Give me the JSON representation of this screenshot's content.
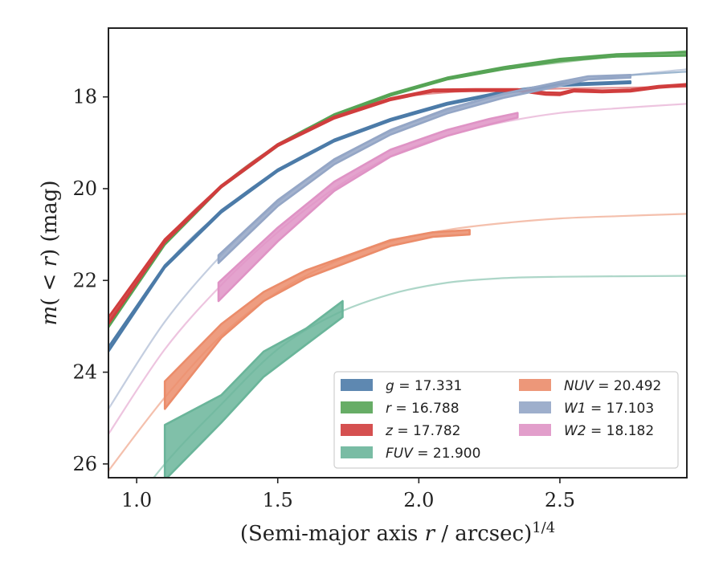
{
  "chart_data": {
    "type": "line",
    "xlabel": "(Semi-major axis r / arcsec)^1/4",
    "ylabel": "m( < r) (mag)",
    "xlim": [
      0.9,
      2.95
    ],
    "ylim": [
      26.3,
      16.5
    ],
    "y_inverted": true,
    "grid": false,
    "legend_position": "lower-right",
    "xticks": [
      {
        "v": 1.0,
        "label": "1.0"
      },
      {
        "v": 1.5,
        "label": "1.5"
      },
      {
        "v": 2.0,
        "label": "2.0"
      },
      {
        "v": 2.5,
        "label": "2.5"
      }
    ],
    "yticks": [
      {
        "v": 18,
        "label": "18"
      },
      {
        "v": 20,
        "label": "20"
      },
      {
        "v": 22,
        "label": "22"
      },
      {
        "v": 24,
        "label": "24"
      },
      {
        "v": 26,
        "label": "26"
      }
    ],
    "series": [
      {
        "name": "g = 17.331",
        "name_var": "g",
        "name_val": "17.331",
        "color": "#4c7ba8",
        "legend_col": 0,
        "legend_row": 0,
        "model": [
          [
            0.9,
            23.5
          ],
          [
            1.1,
            21.7
          ],
          [
            1.3,
            20.5
          ],
          [
            1.5,
            19.6
          ],
          [
            1.7,
            18.95
          ],
          [
            1.9,
            18.5
          ],
          [
            2.1,
            18.15
          ],
          [
            2.3,
            17.9
          ],
          [
            2.5,
            17.7
          ],
          [
            2.7,
            17.55
          ],
          [
            2.95,
            17.45
          ]
        ],
        "data": [
          [
            0.9,
            23.55,
            23.45
          ],
          [
            1.1,
            21.72,
            21.67
          ],
          [
            1.3,
            20.52,
            20.47
          ],
          [
            1.5,
            19.62,
            19.58
          ],
          [
            1.7,
            18.97,
            18.93
          ],
          [
            1.9,
            18.52,
            18.48
          ],
          [
            2.1,
            18.17,
            18.13
          ],
          [
            2.3,
            17.92,
            17.88
          ],
          [
            2.5,
            17.76,
            17.72
          ],
          [
            2.75,
            17.7,
            17.66
          ]
        ]
      },
      {
        "name": "r = 16.788",
        "name_var": "r",
        "name_val": "16.788",
        "color": "#56a455",
        "legend_col": 0,
        "legend_row": 1,
        "model": [
          [
            0.9,
            23.0
          ],
          [
            1.1,
            21.2
          ],
          [
            1.3,
            19.95
          ],
          [
            1.5,
            19.05
          ],
          [
            1.7,
            18.4
          ],
          [
            1.9,
            17.95
          ],
          [
            2.1,
            17.6
          ],
          [
            2.3,
            17.4
          ],
          [
            2.5,
            17.25
          ],
          [
            2.7,
            17.12
          ],
          [
            2.95,
            17.0
          ]
        ],
        "data": [
          [
            0.9,
            23.02,
            22.95
          ],
          [
            1.1,
            21.22,
            21.18
          ],
          [
            1.3,
            19.97,
            19.93
          ],
          [
            1.5,
            19.07,
            19.03
          ],
          [
            1.7,
            18.42,
            18.38
          ],
          [
            1.9,
            17.97,
            17.93
          ],
          [
            2.1,
            17.62,
            17.58
          ],
          [
            2.3,
            17.4,
            17.35
          ],
          [
            2.5,
            17.22,
            17.17
          ],
          [
            2.7,
            17.12,
            17.07
          ],
          [
            2.95,
            17.1,
            17.02
          ]
        ]
      },
      {
        "name": "z = 17.782",
        "name_var": "z",
        "name_val": "17.782",
        "color": "#d03d3d",
        "legend_col": 0,
        "legend_row": 2,
        "model": [
          [
            0.9,
            22.9
          ],
          [
            1.1,
            21.15
          ],
          [
            1.3,
            19.95
          ],
          [
            1.5,
            19.05
          ],
          [
            1.7,
            18.45
          ],
          [
            1.9,
            18.05
          ],
          [
            2.1,
            17.9
          ],
          [
            2.3,
            17.85
          ],
          [
            2.5,
            17.82
          ],
          [
            2.7,
            17.8
          ],
          [
            2.95,
            17.78
          ]
        ],
        "data": [
          [
            0.9,
            22.95,
            22.8
          ],
          [
            1.1,
            21.17,
            21.1
          ],
          [
            1.3,
            19.97,
            19.93
          ],
          [
            1.5,
            19.07,
            19.03
          ],
          [
            1.7,
            18.47,
            18.43
          ],
          [
            1.9,
            18.07,
            18.03
          ],
          [
            2.05,
            17.88,
            17.84
          ],
          [
            2.2,
            17.87,
            17.83
          ],
          [
            2.35,
            17.87,
            17.83
          ],
          [
            2.45,
            17.95,
            17.9
          ],
          [
            2.5,
            17.96,
            17.91
          ],
          [
            2.55,
            17.88,
            17.84
          ],
          [
            2.65,
            17.9,
            17.86
          ],
          [
            2.75,
            17.88,
            17.84
          ],
          [
            2.85,
            17.8,
            17.76
          ],
          [
            2.9,
            17.78,
            17.74
          ],
          [
            2.95,
            17.76,
            17.72
          ]
        ]
      },
      {
        "name": "FUV = 21.900",
        "name_var": "FUV",
        "name_val": "21.900",
        "color": "#6ab59a",
        "legend_col": 0,
        "legend_row": 3,
        "model": [
          [
            0.9,
            27.6
          ],
          [
            1.1,
            26.0
          ],
          [
            1.3,
            24.7
          ],
          [
            1.5,
            23.5
          ],
          [
            1.7,
            22.75
          ],
          [
            1.9,
            22.3
          ],
          [
            2.1,
            22.05
          ],
          [
            2.3,
            21.95
          ],
          [
            2.5,
            21.92
          ],
          [
            2.95,
            21.9
          ]
        ],
        "data": [
          [
            1.1,
            26.35,
            25.15
          ],
          [
            1.3,
            25.1,
            24.5
          ],
          [
            1.45,
            24.1,
            23.55
          ],
          [
            1.6,
            23.4,
            23.05
          ],
          [
            1.73,
            22.8,
            22.45
          ]
        ]
      },
      {
        "name": "NUV = 20.492",
        "name_var": "NUV",
        "name_val": "20.492",
        "color": "#eb8c6a",
        "legend_col": 1,
        "legend_row": 0,
        "model": [
          [
            0.9,
            26.15
          ],
          [
            1.1,
            24.55
          ],
          [
            1.3,
            23.2
          ],
          [
            1.5,
            22.25
          ],
          [
            1.7,
            21.6
          ],
          [
            1.9,
            21.15
          ],
          [
            2.1,
            20.9
          ],
          [
            2.3,
            20.75
          ],
          [
            2.5,
            20.65
          ],
          [
            2.7,
            20.6
          ],
          [
            2.95,
            20.55
          ]
        ],
        "data": [
          [
            1.1,
            24.8,
            24.2
          ],
          [
            1.3,
            23.25,
            22.95
          ],
          [
            1.45,
            22.45,
            22.25
          ],
          [
            1.6,
            21.95,
            21.78
          ],
          [
            1.75,
            21.6,
            21.45
          ],
          [
            1.9,
            21.25,
            21.12
          ],
          [
            2.05,
            21.05,
            20.95
          ],
          [
            2.18,
            21.0,
            20.9
          ]
        ]
      },
      {
        "name": "W1 = 17.103",
        "name_var": "W1",
        "name_val": "17.103",
        "color": "#94a6c6",
        "legend_col": 1,
        "legend_row": 1,
        "model": [
          [
            0.9,
            24.8
          ],
          [
            1.1,
            22.9
          ],
          [
            1.3,
            21.45
          ],
          [
            1.5,
            20.3
          ],
          [
            1.7,
            19.4
          ],
          [
            1.9,
            18.75
          ],
          [
            2.1,
            18.3
          ],
          [
            2.3,
            17.95
          ],
          [
            2.5,
            17.7
          ],
          [
            2.7,
            17.55
          ],
          [
            2.95,
            17.4
          ]
        ],
        "data": [
          [
            1.29,
            21.62,
            21.45
          ],
          [
            1.5,
            20.38,
            20.25
          ],
          [
            1.7,
            19.47,
            19.36
          ],
          [
            1.9,
            18.82,
            18.72
          ],
          [
            2.1,
            18.36,
            18.26
          ],
          [
            2.3,
            18.02,
            17.93
          ],
          [
            2.5,
            17.76,
            17.67
          ],
          [
            2.6,
            17.62,
            17.55
          ],
          [
            2.75,
            17.58,
            17.52
          ]
        ]
      },
      {
        "name": "W2 = 18.182",
        "name_var": "W2",
        "name_val": "18.182",
        "color": "#df93c5",
        "legend_col": 1,
        "legend_row": 2,
        "model": [
          [
            0.9,
            25.35
          ],
          [
            1.1,
            23.5
          ],
          [
            1.3,
            22.1
          ],
          [
            1.5,
            20.95
          ],
          [
            1.7,
            20.0
          ],
          [
            1.9,
            19.3
          ],
          [
            2.1,
            18.85
          ],
          [
            2.3,
            18.55
          ],
          [
            2.5,
            18.35
          ],
          [
            2.7,
            18.25
          ],
          [
            2.95,
            18.15
          ]
        ],
        "data": [
          [
            1.29,
            22.45,
            22.05
          ],
          [
            1.5,
            21.15,
            20.85
          ],
          [
            1.7,
            20.05,
            19.85
          ],
          [
            1.9,
            19.3,
            19.15
          ],
          [
            2.1,
            18.85,
            18.72
          ],
          [
            2.25,
            18.6,
            18.48
          ],
          [
            2.35,
            18.45,
            18.35
          ]
        ]
      }
    ]
  }
}
